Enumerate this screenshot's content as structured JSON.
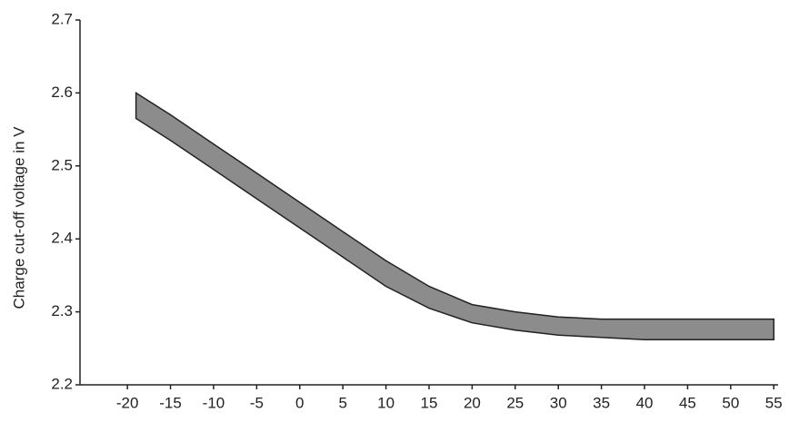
{
  "chart_data": {
    "type": "range",
    "y_label": "Charge cut-off voltage in V",
    "x": [
      -19,
      -15,
      -10,
      -5,
      0,
      5,
      10,
      15,
      20,
      25,
      30,
      35,
      40,
      45,
      50,
      55
    ],
    "high": [
      2.6,
      2.57,
      2.53,
      2.49,
      2.45,
      2.41,
      2.37,
      2.335,
      2.31,
      2.3,
      2.293,
      2.29,
      2.29,
      2.29,
      2.29,
      2.29
    ],
    "low": [
      2.565,
      2.535,
      2.495,
      2.455,
      2.415,
      2.375,
      2.335,
      2.305,
      2.285,
      2.275,
      2.268,
      2.265,
      2.262,
      2.262,
      2.262,
      2.262
    ],
    "color": "#8c8c8c",
    "xlim": [
      -25.5,
      55.5
    ],
    "xticks": [
      -20,
      -15,
      -10,
      -5,
      0,
      5,
      10,
      15,
      20,
      25,
      30,
      35,
      40,
      45,
      50,
      55
    ],
    "ylim": [
      2.2,
      2.7
    ],
    "yticks": [
      2.2,
      2.3,
      2.4,
      2.5,
      2.6,
      2.7
    ],
    "grid": false
  }
}
